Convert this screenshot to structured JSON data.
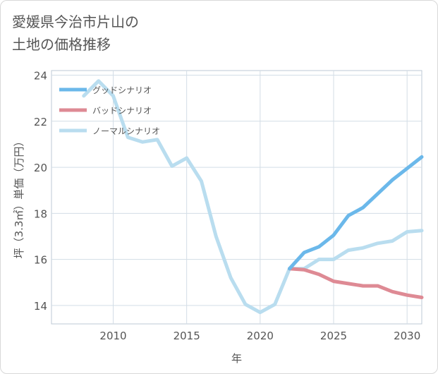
{
  "title": "愛媛県今治市片山の\n土地の価格推移",
  "chart_data": {
    "type": "line",
    "title": "愛媛県今治市片山の土地の価格推移",
    "xlabel": "年",
    "ylabel": "坪（3.3㎡）単価（万円）",
    "xlim": [
      2005.8,
      2031
    ],
    "ylim": [
      13.2,
      24.2
    ],
    "xticks": [
      2010,
      2015,
      2020,
      2025,
      2030
    ],
    "yticks": [
      14,
      16,
      18,
      20,
      22,
      24
    ],
    "grid": true,
    "legend_position": "top-left",
    "series": [
      {
        "name": "グッドシナリオ",
        "color": "#6bb8ea",
        "x": [
          2022,
          2023,
          2024,
          2025,
          2026,
          2027,
          2028,
          2029,
          2030,
          2031
        ],
        "y": [
          15.6,
          16.3,
          16.55,
          17.05,
          17.9,
          18.25,
          18.85,
          19.45,
          19.95,
          20.45
        ]
      },
      {
        "name": "バッドシナリオ",
        "color": "#de8a94",
        "x": [
          2022,
          2023,
          2024,
          2025,
          2026,
          2027,
          2028,
          2029,
          2030,
          2031
        ],
        "y": [
          15.6,
          15.55,
          15.35,
          15.05,
          14.95,
          14.85,
          14.85,
          14.6,
          14.45,
          14.35
        ]
      },
      {
        "name": "ノーマルシナリオ",
        "color": "#b9ddef",
        "x": [
          2008,
          2009,
          2010,
          2011,
          2012,
          2013,
          2014,
          2015,
          2016,
          2017,
          2018,
          2019,
          2020,
          2021,
          2022,
          2023,
          2024,
          2025,
          2026,
          2027,
          2028,
          2029,
          2030,
          2031
        ],
        "y": [
          23.1,
          23.75,
          23.1,
          21.3,
          21.1,
          21.2,
          20.05,
          20.4,
          19.4,
          17.0,
          15.2,
          14.05,
          13.7,
          14.05,
          15.6,
          15.6,
          16.0,
          16.0,
          16.4,
          16.5,
          16.7,
          16.8,
          17.2,
          17.25
        ]
      }
    ]
  }
}
